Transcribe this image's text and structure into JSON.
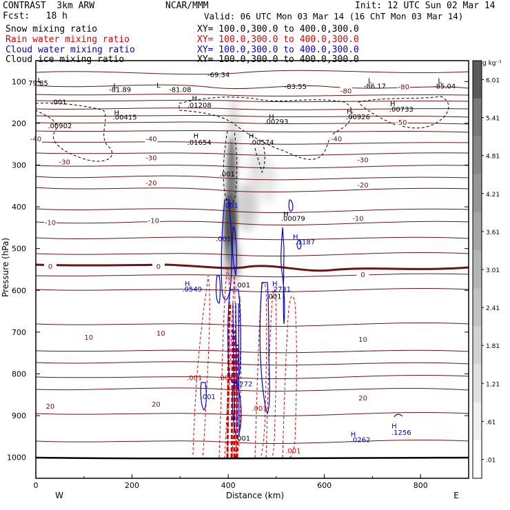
{
  "header": {
    "left_title": "CONTRAST  3km ARW",
    "center_title": "NCAR/MMM",
    "init": "Init: 12 UTC Sun 02 Mar 14",
    "fcst": "Fcst:   18 h",
    "valid": "Valid: 06 UTC Mon 03 Mar 14 (16 ChT Mon 03 Mar 14)",
    "fields": [
      {
        "name": "Snow mixing ratio",
        "xy": "XY= 100.0,300.0 to 400.0,300.0",
        "color": "#000000"
      },
      {
        "name": "Rain water mixing ratio",
        "xy": "XY= 100.0,300.0 to 400.0,300.0",
        "color": "#e00000"
      },
      {
        "name": "Cloud water mixing ratio",
        "xy": "XY= 100.0,300.0 to 400.0,300.0",
        "color": "#0000d0"
      },
      {
        "name": "Cloud ice mixing ratio",
        "xy": "XY= 100.0,300.0 to 400.0,300.0",
        "color": "#000000"
      }
    ]
  },
  "chart_data": {
    "type": "cross-section-contour",
    "xlabel": "Distance (km)",
    "ylabel": "Pressure (hPa)",
    "xlim": [
      0,
      900
    ],
    "ylim": [
      1050,
      50
    ],
    "x_ticks": [
      0,
      200,
      400,
      600,
      800
    ],
    "y_ticks": [
      100,
      200,
      300,
      400,
      500,
      600,
      700,
      800,
      900,
      1000
    ],
    "x_end_labels": {
      "left": "W",
      "right": "E"
    },
    "colorbar": {
      "unit": "g kg⁻¹",
      "labels": [
        ".01",
        ".61",
        "1.21",
        "1.81",
        "2.41",
        "3.01",
        "3.61",
        "4.21",
        "4.81",
        "5.41",
        "6.01"
      ],
      "colors": [
        "#ffffff",
        "#f0f0f0",
        "#e1e1e1",
        "#d2d2d2",
        "#c3c3c3",
        "#b4b4b4",
        "#a5a5a5",
        "#969696",
        "#878787",
        "#787878",
        "#5a5a5a"
      ]
    },
    "temperature_labels": [
      {
        "text": "-80",
        "x": 645,
        "p": 125
      },
      {
        "text": "-80",
        "x": 765,
        "p": 115
      },
      {
        "text": "-50",
        "x": 760,
        "p": 200
      },
      {
        "text": "-40",
        "x": 0,
        "p": 240
      },
      {
        "text": "-40",
        "x": 240,
        "p": 240
      },
      {
        "text": "-40",
        "x": 625,
        "p": 240
      },
      {
        "text": "-30",
        "x": 60,
        "p": 295
      },
      {
        "text": "-30",
        "x": 240,
        "p": 285
      },
      {
        "text": "-30",
        "x": 680,
        "p": 290
      },
      {
        "text": "-20",
        "x": 240,
        "p": 345
      },
      {
        "text": "-20",
        "x": 680,
        "p": 350
      },
      {
        "text": "-10",
        "x": 30,
        "p": 440
      },
      {
        "text": "-10",
        "x": 245,
        "p": 435
      },
      {
        "text": "-10",
        "x": 670,
        "p": 430
      },
      {
        "text": "0",
        "x": 30,
        "p": 545
      },
      {
        "text": "0",
        "x": 255,
        "p": 545
      },
      {
        "text": "0",
        "x": 680,
        "p": 565
      },
      {
        "text": "10",
        "x": 110,
        "p": 715
      },
      {
        "text": "10",
        "x": 260,
        "p": 705
      },
      {
        "text": "10",
        "x": 680,
        "p": 720
      },
      {
        "text": "20",
        "x": 30,
        "p": 880
      },
      {
        "text": "20",
        "x": 250,
        "p": 875
      },
      {
        "text": "20",
        "x": 680,
        "p": 860
      }
    ],
    "extrema_labels": [
      {
        "text": "L",
        "x": 8,
        "p": 103,
        "color": "#000000"
      },
      {
        "text": "79.85",
        "x": 5,
        "p": 109,
        "color": "#000000"
      },
      {
        "text": "L",
        "x": 165,
        "p": 116,
        "color": "#000000"
      },
      {
        "text": "-81.89",
        "x": 175,
        "p": 125,
        "color": "#000000"
      },
      {
        "text": "L",
        "x": 255,
        "p": 114,
        "color": "#000000"
      },
      {
        "text": "-81.08",
        "x": 300,
        "p": 125,
        "color": "#000000"
      },
      {
        "text": "-69.34",
        "x": 380,
        "p": 90,
        "color": "#000000"
      },
      {
        "text": "-83.55",
        "x": 540,
        "p": 118,
        "color": "#000000"
      },
      {
        "text": "L",
        "x": 695,
        "p": 104,
        "color": "#000000"
      },
      {
        "text": "-86.17",
        "x": 705,
        "p": 117,
        "color": "#000000"
      },
      {
        "text": "L",
        "x": 840,
        "p": 104,
        "color": "#000000"
      },
      {
        "text": "-85.04",
        "x": 850,
        "p": 117,
        "color": "#000000"
      },
      {
        "text": ".001",
        "x": 48,
        "p": 155,
        "color": "#000000"
      },
      {
        "text": "H",
        "x": 168,
        "p": 180,
        "color": "#000000"
      },
      {
        "text": ".00415",
        "x": 185,
        "p": 191,
        "color": "#000000"
      },
      {
        "text": ".00902",
        "x": 50,
        "p": 212,
        "color": "#000000"
      },
      {
        "text": "H",
        "x": 330,
        "p": 146,
        "color": "#000000"
      },
      {
        "text": ".01208",
        "x": 340,
        "p": 162,
        "color": "#000000"
      },
      {
        "text": "H",
        "x": 490,
        "p": 190,
        "color": "#000000"
      },
      {
        "text": ".00293",
        "x": 500,
        "p": 202,
        "color": "#000000"
      },
      {
        "text": "H",
        "x": 652,
        "p": 177,
        "color": "#000000"
      },
      {
        "text": ".00926",
        "x": 670,
        "p": 190,
        "color": "#000000"
      },
      {
        "text": "H",
        "x": 742,
        "p": 159,
        "color": "#000000"
      },
      {
        "text": ".00733",
        "x": 760,
        "p": 172,
        "color": "#000000"
      },
      {
        "text": "H",
        "x": 333,
        "p": 236,
        "color": "#000000"
      },
      {
        "text": ".01654",
        "x": 340,
        "p": 251,
        "color": "#000000"
      },
      {
        "text": "H",
        "x": 448,
        "p": 236,
        "color": "#000000"
      },
      {
        "text": ".00574",
        "x": 470,
        "p": 251,
        "color": "#000000"
      },
      {
        "text": ".001",
        "x": 398,
        "p": 327,
        "color": "#000000"
      },
      {
        "text": ".001",
        "x": 405,
        "p": 402,
        "color": "#0000d0"
      },
      {
        "text": "H",
        "x": 520,
        "p": 423,
        "color": "#000000"
      },
      {
        "text": ".00079",
        "x": 535,
        "p": 434,
        "color": "#000000"
      },
      {
        "text": ".001",
        "x": 390,
        "p": 482,
        "color": "#0000d0"
      },
      {
        "text": "H",
        "x": 540,
        "p": 477,
        "color": "#0000d0"
      },
      {
        "text": ".1187",
        "x": 560,
        "p": 490,
        "color": "#0000d0"
      },
      {
        "text": ".001",
        "x": 430,
        "p": 593,
        "color": "#000000"
      },
      {
        "text": "H",
        "x": 315,
        "p": 590,
        "color": "#0000d0"
      },
      {
        "text": ".0549",
        "x": 325,
        "p": 603,
        "color": "#0000d0"
      },
      {
        "text": "H",
        "x": 497,
        "p": 590,
        "color": "#0000d0"
      },
      {
        "text": ".2731",
        "x": 510,
        "p": 603,
        "color": "#0000d0"
      },
      {
        "text": ".001",
        "x": 495,
        "p": 620,
        "color": "#000000"
      },
      {
        "text": ".001",
        "x": 330,
        "p": 815,
        "color": "#e00000"
      },
      {
        "text": ".001",
        "x": 395,
        "p": 815,
        "color": "#e00000"
      },
      {
        "text": ".5272",
        "x": 430,
        "p": 830,
        "color": "#0000d0"
      },
      {
        "text": ".001",
        "x": 358,
        "p": 860,
        "color": "#0000d0"
      },
      {
        "text": ".001",
        "x": 465,
        "p": 888,
        "color": "#e00000"
      },
      {
        "text": ".001",
        "x": 430,
        "p": 960,
        "color": "#000000"
      },
      {
        "text": ".001",
        "x": 535,
        "p": 990,
        "color": "#e00000"
      },
      {
        "text": "H",
        "x": 660,
        "p": 950,
        "color": "#0000d0"
      },
      {
        "text": ".0262",
        "x": 675,
        "p": 963,
        "color": "#0000d0"
      },
      {
        "text": "H",
        "x": 745,
        "p": 930,
        "color": "#0000d0"
      },
      {
        "text": ".1256",
        "x": 760,
        "p": 946,
        "color": "#0000d0"
      }
    ]
  }
}
